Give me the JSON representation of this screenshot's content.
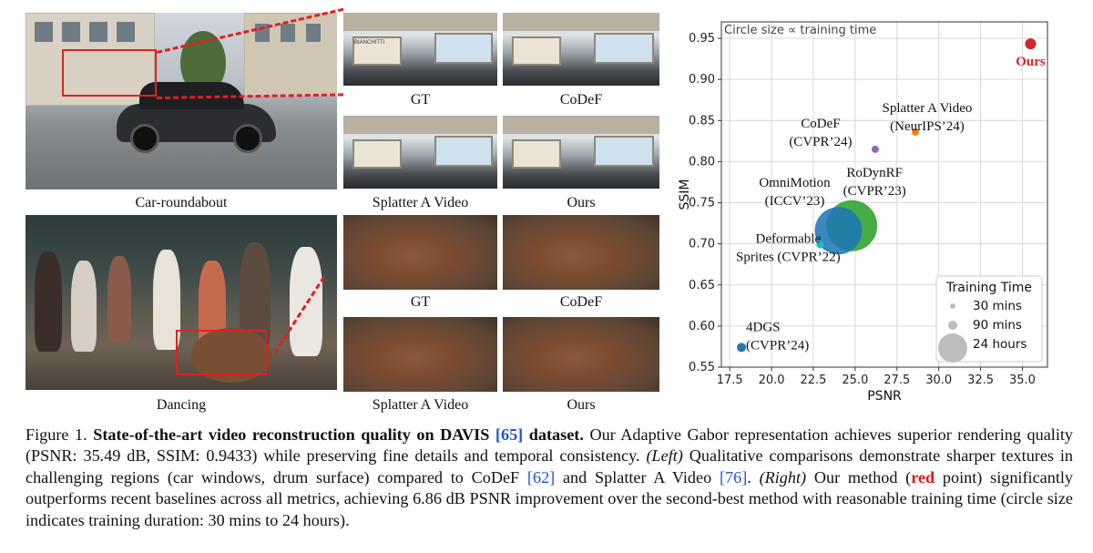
{
  "figure": {
    "captions": {
      "car_main": "Car-roundabout",
      "car_gt": "GT",
      "car_codef": "CoDeF",
      "car_splatter": "Splatter A Video",
      "car_ours": "Ours",
      "dance_main": "Dancing",
      "dance_gt": "GT",
      "dance_codef": "CoDeF",
      "dance_splatter": "Splatter A Video",
      "dance_ours": "Ours"
    },
    "sign_text": "BIANCHITTI"
  },
  "chart_data": {
    "type": "scatter",
    "annotation": "Circle size ∝ training time",
    "xlabel": "PSNR",
    "ylabel": "SSIM",
    "xlim": [
      17.0,
      36.5
    ],
    "ylim": [
      0.55,
      0.97
    ],
    "xticks": [
      "17.5",
      "20.0",
      "22.5",
      "25.0",
      "27.5",
      "30.0",
      "32.5",
      "35.0"
    ],
    "yticks": [
      "0.55",
      "0.60",
      "0.65",
      "0.70",
      "0.75",
      "0.80",
      "0.85",
      "0.90",
      "0.95"
    ],
    "grid": true,
    "points": [
      {
        "name": "Ours",
        "label_lines": [
          "Ours"
        ],
        "psnr": 35.49,
        "ssim": 0.9433,
        "size": 6,
        "color": "#d62728",
        "label_color": "#d62728",
        "label_bold": true
      },
      {
        "name": "Splatter A Video",
        "label_lines": [
          "Splatter A Video",
          "(NeurIPS’24)"
        ],
        "psnr": 28.6,
        "ssim": 0.836,
        "size": 4,
        "color": "#ff7f0e"
      },
      {
        "name": "CoDeF",
        "label_lines": [
          "CoDeF",
          "(CVPR’24)"
        ],
        "psnr": 26.2,
        "ssim": 0.815,
        "size": 4,
        "color": "#9467bd"
      },
      {
        "name": "RoDynRF",
        "label_lines": [
          "RoDynRF",
          "(CVPR’23)"
        ],
        "psnr": 24.8,
        "ssim": 0.722,
        "size": 28,
        "color": "#2ca02c"
      },
      {
        "name": "OmniMotion",
        "label_lines": [
          "OmniMotion",
          "(ICCV’23)"
        ],
        "psnr": 24.0,
        "ssim": 0.716,
        "size": 26,
        "color": "#1f77b4"
      },
      {
        "name": "Deformable Sprites",
        "label_lines": [
          "Deformable",
          "Sprites (CVPR’22)"
        ],
        "psnr": 22.9,
        "ssim": 0.699,
        "size": 4,
        "color": "#17becf"
      },
      {
        "name": "4DGS",
        "label_lines": [
          "4DGS",
          "(CVPR’24)"
        ],
        "psnr": 18.2,
        "ssim": 0.574,
        "size": 5,
        "color": "#1f77b4"
      }
    ],
    "legend": {
      "title": "Training Time",
      "items": [
        {
          "label": "30 mins",
          "size": 3
        },
        {
          "label": "90 mins",
          "size": 5
        },
        {
          "label": "24 hours",
          "size": 16
        }
      ],
      "placement": "bottom-right"
    }
  },
  "caption": {
    "label": "Figure 1.",
    "title_a": "State-of-the-art video reconstruction quality on DAVIS",
    "ref_65": "[65]",
    "title_b": "dataset.",
    "text_1": "Our Adaptive Gabor representation achieves superior rendering quality (PSNR: 35.49 dB, SSIM: 0.9433) while preserving fine details and temporal consistency.",
    "left_tag": "(Left)",
    "text_2": "Qualitative comparisons demonstrate sharper textures in challenging regions (car windows, drum surface) compared to CoDeF",
    "ref_62": "[62]",
    "text_3": "and Splatter A Video",
    "ref_76": "[76]",
    "text_4": ".",
    "right_tag": "(Right)",
    "text_5": "Our method (",
    "red_word": "red",
    "text_6": "point) significantly outperforms recent baselines across all metrics, achieving 6.86 dB PSNR improvement over the second-best method with reasonable training time (circle size indicates training duration: 30 mins to 24 hours)."
  }
}
